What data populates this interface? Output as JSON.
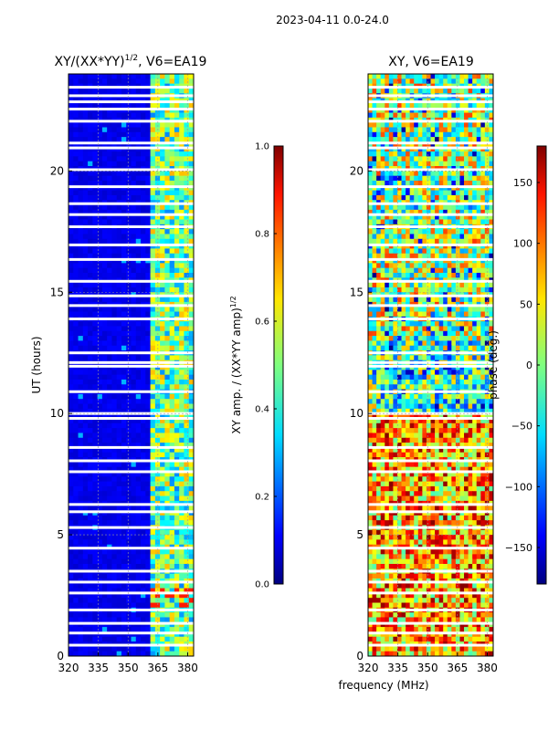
{
  "figure": {
    "suptitle": "2023-04-11 0.0-24.0",
    "xlabel_shared": "frequency (MHz)"
  },
  "chart_data": [
    {
      "type": "heatmap",
      "title_main": "XY/(XX*YY)",
      "title_sup": "1/2",
      "title_tail": ", V6=EA19",
      "xlabel": "",
      "ylabel": "UT (hours)",
      "xlim": [
        320,
        383
      ],
      "ylim": [
        0,
        24
      ],
      "xticks": [
        320,
        335,
        350,
        365,
        380
      ],
      "yticks": [
        0,
        5,
        10,
        15,
        20
      ],
      "grid": true,
      "colormap": "jet",
      "colorbar": {
        "label_main": "XY amp. / (XX*YY amp)",
        "label_sup": "1/2",
        "range": [
          0.0,
          1.0
        ],
        "ticks": [
          "0.0",
          "0.2",
          "0.4",
          "0.6",
          "0.8",
          "1.0"
        ]
      }
    },
    {
      "type": "heatmap",
      "title_main": "XY, V6=EA19",
      "xlabel": "frequency (MHz)",
      "ylabel": "",
      "xlim": [
        320,
        383
      ],
      "ylim": [
        0,
        24
      ],
      "xticks": [
        320,
        335,
        350,
        365,
        380
      ],
      "yticks": [
        0,
        5,
        10,
        15,
        20
      ],
      "grid": true,
      "colormap": "jet",
      "colorbar": {
        "label": "phase (deg.)",
        "range": [
          -180,
          180
        ],
        "ticks": [
          "150",
          "100",
          "50",
          "0",
          "−50",
          "−100",
          "−150"
        ],
        "tick_values": [
          150,
          100,
          50,
          0,
          -50,
          -100,
          -150
        ]
      }
    }
  ],
  "data_gaps_hours": [
    0.45,
    0.95,
    1.35,
    1.9,
    2.6,
    3.05,
    3.5,
    4.45,
    5.3,
    5.95,
    6.25,
    7.6,
    8.05,
    8.6,
    9.8,
    10.0,
    10.9,
    11.95,
    12.1,
    12.5,
    13.9,
    14.45,
    14.85,
    15.45,
    16.35,
    16.95,
    17.7,
    18.2,
    18.65,
    19.35,
    20.05,
    20.95,
    21.15,
    22.05,
    22.55,
    22.85,
    23.1,
    23.45
  ]
}
